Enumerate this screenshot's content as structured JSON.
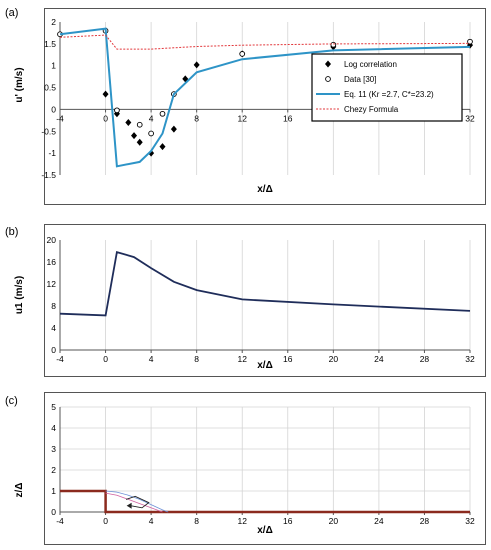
{
  "chart_data": [
    {
      "label": "(a)",
      "type": "line",
      "xlabel": "x/Δ",
      "ylabel": "u' (m/s)",
      "xlim": [
        -4,
        32
      ],
      "ylim": [
        -1.5,
        2
      ],
      "xticks": [
        "-4",
        "0",
        "4",
        "8",
        "12",
        "16",
        "20",
        "24",
        "28",
        "32"
      ],
      "yticks": [
        "-1.5",
        "-1",
        "-0.5",
        "0",
        "0.5",
        "1",
        "1.5",
        "2"
      ],
      "grid": "vertical",
      "legend_position": "right",
      "series": [
        {
          "name": "Log correlation",
          "style": "diamond",
          "color": "#000000",
          "x": [
            0,
            1,
            2,
            2.5,
            3,
            4,
            5,
            6,
            7,
            8,
            12,
            20,
            32
          ],
          "y": [
            0.35,
            -0.1,
            -0.3,
            -0.6,
            -0.75,
            -1.0,
            -0.85,
            -0.45,
            0.7,
            1.02,
            1.27,
            1.43,
            1.47
          ]
        },
        {
          "name": "Data [30]",
          "style": "circle",
          "color": "#000000",
          "x": [
            -4,
            0,
            1,
            3,
            4,
            5,
            6,
            12,
            20,
            32
          ],
          "y": [
            1.72,
            1.8,
            -0.02,
            -0.35,
            -0.55,
            -0.1,
            0.35,
            1.27,
            1.48,
            1.55
          ]
        },
        {
          "name": "Eq. 11 (Kr =2.7, C*=23.2)",
          "style": "line",
          "color": "#2e94c7",
          "x": [
            -4,
            0,
            1,
            3,
            4,
            5,
            6,
            8,
            12,
            20,
            32
          ],
          "y": [
            1.72,
            1.85,
            -1.3,
            -1.2,
            -0.95,
            -0.55,
            0.35,
            0.85,
            1.15,
            1.35,
            1.43
          ]
        },
        {
          "name": "Chezy Formula",
          "style": "dashed",
          "color": "#e2373b",
          "x": [
            -4,
            0,
            1,
            2,
            4,
            8,
            12,
            20,
            32
          ],
          "y": [
            1.65,
            1.7,
            1.38,
            1.38,
            1.38,
            1.44,
            1.47,
            1.5,
            1.51
          ]
        }
      ]
    },
    {
      "label": "(b)",
      "type": "line",
      "xlabel": "x/Δ",
      "ylabel": "u1 (m/s)",
      "xlim": [
        -4,
        32
      ],
      "ylim": [
        0,
        20
      ],
      "xticks": [
        "-4",
        "0",
        "4",
        "8",
        "12",
        "16",
        "20",
        "24",
        "28",
        "32"
      ],
      "yticks": [
        "0",
        "4",
        "8",
        "12",
        "16",
        "20"
      ],
      "grid": "vertical",
      "series": [
        {
          "color": "#1f2d5a",
          "x": [
            -4,
            0,
            1,
            2.5,
            4,
            6,
            8,
            12,
            20,
            32
          ],
          "y": [
            6.6,
            6.3,
            17.8,
            16.9,
            14.9,
            12.4,
            10.9,
            9.2,
            8.3,
            7.1
          ]
        }
      ]
    },
    {
      "label": "(c)",
      "type": "line",
      "ylabel": "z/Δ",
      "xlabel": "x/Δ",
      "xlim": [
        -4,
        32
      ],
      "ylim": [
        0,
        5
      ],
      "xticks": [
        "-4",
        "0",
        "4",
        "8",
        "12",
        "16",
        "20",
        "24",
        "28",
        "32"
      ],
      "yticks": [
        "0",
        "1",
        "2",
        "3",
        "4",
        "5"
      ],
      "grid": "both",
      "series": [
        {
          "style": "profile",
          "color": "#8b2a1e",
          "x": [
            -4,
            0,
            0,
            32
          ],
          "y": [
            1,
            1,
            0,
            0
          ]
        },
        {
          "style": "thin",
          "color": "#6b8fd6",
          "x": [
            0,
            1,
            2,
            3,
            4,
            5,
            5.5
          ],
          "y": [
            1.0,
            0.95,
            0.8,
            0.6,
            0.35,
            0.1,
            0
          ]
        },
        {
          "style": "thin",
          "color": "#d060a0",
          "x": [
            0,
            1,
            2,
            3,
            4,
            5
          ],
          "y": [
            0.9,
            0.8,
            0.6,
            0.4,
            0.2,
            0
          ]
        },
        {
          "style": "arrow",
          "color": "#222222",
          "x": [
            1.8,
            2.6,
            3.8,
            3.2,
            2.2
          ],
          "y": [
            0.6,
            0.75,
            0.45,
            0.2,
            0.3
          ]
        }
      ]
    }
  ]
}
